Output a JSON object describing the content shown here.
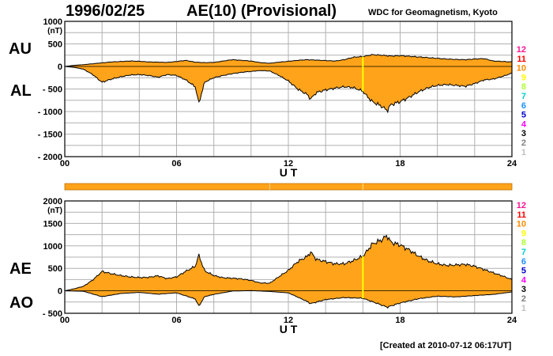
{
  "header": {
    "date": "1996/02/25",
    "title": "AE(10) (Provisional)",
    "organization": "WDC for Geomagnetism, Kyoto",
    "created": "[Created at 2010-07-12 06:17UT]"
  },
  "side_labels": {
    "au": "AU",
    "al": "AL",
    "ae": "AE",
    "ao": "AO"
  },
  "station_counts": {
    "labels": [
      "12",
      "11",
      "10",
      "9",
      "8",
      "7",
      "6",
      "5",
      "4",
      "3",
      "2",
      "1"
    ],
    "colors": [
      "#ff1493",
      "#ff0000",
      "#ff8c00",
      "#ffff00",
      "#adff2f",
      "#00ced1",
      "#1e90ff",
      "#0000cd",
      "#ff00ff",
      "#000000",
      "#808080",
      "#c0c0c0"
    ]
  },
  "colors": {
    "fill": "#ffa31a",
    "outline": "#000000",
    "grid": "#b0b0b0",
    "marker": "#ffff00",
    "bar": "#ffa31a"
  },
  "chart_data": [
    {
      "type": "area",
      "panel": "AU / AL",
      "ylabel_unit": "(nT)",
      "xlabel": "U T",
      "xlim": [
        0,
        24
      ],
      "ylim": [
        -2000,
        1000
      ],
      "y_ticks": [
        "1000",
        "500",
        "0",
        "- 500",
        "- 1000",
        "- 1500",
        "- 2000"
      ],
      "y_tick_values": [
        1000,
        500,
        0,
        -500,
        -1000,
        -1500,
        -2000
      ],
      "x_ticks": [
        "00",
        "06",
        "12",
        "18",
        "24"
      ],
      "x_tick_values": [
        0,
        6,
        12,
        18,
        24
      ],
      "grid": true,
      "marker_hour": 16.0,
      "series": [
        {
          "name": "AU",
          "x": [
            0,
            0.5,
            1,
            1.5,
            2,
            2.5,
            3,
            3.5,
            4,
            4.5,
            5,
            5.5,
            6,
            6.5,
            7,
            7.5,
            8,
            8.5,
            9,
            9.5,
            10,
            10.5,
            11,
            11.5,
            12,
            12.5,
            13,
            13.5,
            14,
            14.5,
            15,
            15.5,
            16,
            16.5,
            17,
            17.5,
            18,
            18.5,
            19,
            19.5,
            20,
            20.5,
            21,
            21.5,
            22,
            22.5,
            23,
            23.5,
            24
          ],
          "values": [
            0,
            25,
            40,
            60,
            80,
            100,
            110,
            120,
            115,
            100,
            95,
            90,
            110,
            135,
            95,
            85,
            90,
            120,
            150,
            135,
            120,
            85,
            70,
            95,
            115,
            135,
            150,
            140,
            130,
            120,
            150,
            205,
            220,
            260,
            250,
            230,
            240,
            225,
            210,
            195,
            180,
            165,
            155,
            150,
            165,
            175,
            120,
            110,
            100
          ]
        },
        {
          "name": "AL",
          "x": [
            0,
            0.5,
            1,
            1.5,
            2,
            2.5,
            3,
            3.5,
            4,
            4.5,
            5,
            5.5,
            6,
            6.5,
            7,
            7.2,
            7.5,
            8,
            8.5,
            9,
            9.5,
            10,
            10.5,
            11,
            11.5,
            12,
            12.5,
            13,
            13.2,
            13.5,
            14,
            14.5,
            15,
            15.5,
            16,
            16.2,
            16.5,
            17,
            17.3,
            17.5,
            18,
            18.5,
            19,
            19.5,
            20,
            20.5,
            21,
            21.5,
            22,
            22.5,
            23,
            23.5,
            24
          ],
          "values": [
            0,
            -20,
            -60,
            -180,
            -350,
            -280,
            -230,
            -190,
            -180,
            -200,
            -240,
            -180,
            -200,
            -300,
            -450,
            -820,
            -350,
            -250,
            -200,
            -160,
            -130,
            -110,
            -90,
            -100,
            -200,
            -320,
            -500,
            -620,
            -720,
            -580,
            -520,
            -480,
            -450,
            -470,
            -550,
            -650,
            -780,
            -880,
            -980,
            -850,
            -780,
            -680,
            -560,
            -470,
            -420,
            -400,
            -420,
            -440,
            -380,
            -300,
            -280,
            -220,
            -150
          ]
        }
      ]
    },
    {
      "type": "area",
      "panel": "AE / AO",
      "ylabel_unit": "(nT)",
      "xlabel": "U T",
      "xlim": [
        0,
        24
      ],
      "ylim": [
        -500,
        2000
      ],
      "y_ticks": [
        "2000",
        "1500",
        "1000",
        "500",
        "0",
        "- 500"
      ],
      "y_tick_values": [
        2000,
        1500,
        1000,
        500,
        0,
        -500
      ],
      "x_ticks": [
        "00",
        "06",
        "12",
        "18",
        "24"
      ],
      "x_tick_values": [
        0,
        6,
        12,
        18,
        24
      ],
      "grid": true,
      "marker_hour": 16.0,
      "series": [
        {
          "name": "AE",
          "x": [
            0,
            0.5,
            1,
            1.5,
            2,
            2.5,
            3,
            3.5,
            4,
            4.5,
            5,
            5.5,
            6,
            6.5,
            7,
            7.2,
            7.5,
            8,
            8.5,
            9,
            9.5,
            10,
            10.5,
            11,
            11.5,
            12,
            12.5,
            13,
            13.2,
            13.5,
            14,
            14.5,
            15,
            15.5,
            16,
            16.2,
            16.5,
            17,
            17.3,
            17.5,
            18,
            18.5,
            19,
            19.5,
            20,
            20.5,
            21,
            21.5,
            22,
            22.5,
            23,
            23.5,
            24
          ],
          "values": [
            0,
            45,
            100,
            240,
            430,
            380,
            340,
            310,
            295,
            300,
            335,
            270,
            310,
            435,
            545,
            790,
            445,
            340,
            290,
            280,
            265,
            230,
            175,
            170,
            315,
            455,
            650,
            760,
            860,
            700,
            650,
            600,
            600,
            675,
            770,
            870,
            1040,
            1130,
            1230,
            1080,
            1020,
            905,
            770,
            665,
            600,
            565,
            575,
            590,
            545,
            475,
            400,
            330,
            250
          ]
        },
        {
          "name": "AO",
          "x": [
            0,
            1,
            2,
            3,
            4,
            5,
            6,
            7,
            7.2,
            7.5,
            8,
            9,
            10,
            11,
            12,
            13,
            13.2,
            14,
            15,
            16,
            17,
            17.3,
            18,
            19,
            20,
            21,
            22,
            23,
            24
          ],
          "values": [
            0,
            -10,
            -130,
            -60,
            -35,
            -75,
            -45,
            -180,
            -340,
            -130,
            -80,
            -5,
            5,
            -15,
            -45,
            -235,
            -285,
            -195,
            -150,
            -165,
            -315,
            -365,
            -270,
            -175,
            -120,
            -135,
            -105,
            -80,
            -25
          ]
        }
      ]
    }
  ]
}
